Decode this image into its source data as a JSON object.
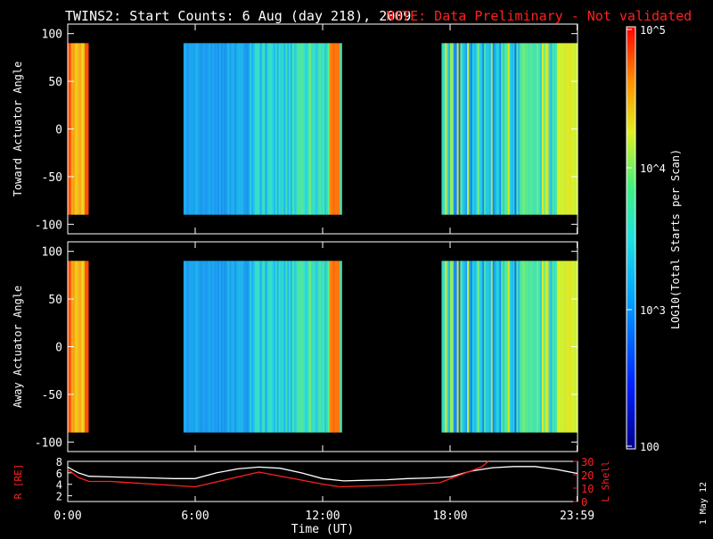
{
  "header": {
    "title": "TWINS2: Start Counts:  6 Aug (day 218), 2009",
    "note": "NOTE: Data Preliminary - Not validated",
    "note_color": "#ff2020"
  },
  "side_label": "1 May 12",
  "colorbar": {
    "label": "LOG10(Total Starts per Scan)",
    "ticks": [
      "10^5",
      "10^4",
      "10^3",
      "100"
    ],
    "range": [
      100,
      100000
    ],
    "scale": "log"
  },
  "chart_data": [
    {
      "type": "heatmap",
      "panel": "top",
      "ylabel": "Toward Actuator Angle",
      "xlabel": "",
      "xlim": [
        0,
        24
      ],
      "ylim": [
        -110,
        110
      ],
      "yticks": [
        100,
        50,
        0,
        -50,
        -100
      ],
      "coverage_hours": [
        [
          0.0,
          0.95
        ],
        [
          5.45,
          12.85
        ],
        [
          17.6,
          23.95
        ]
      ],
      "colors": {
        "low": "#1030d0",
        "mid": "#20d8ff",
        "high": "#ffff20",
        "max": "#ff2000"
      }
    },
    {
      "type": "heatmap",
      "panel": "middle",
      "ylabel": "Away Actuator Angle",
      "xlabel": "",
      "xlim": [
        0,
        24
      ],
      "ylim": [
        -110,
        110
      ],
      "yticks": [
        100,
        50,
        0,
        -50,
        -100
      ],
      "coverage_hours": [
        [
          0.0,
          0.95
        ],
        [
          5.45,
          12.85
        ],
        [
          17.6,
          23.95
        ]
      ],
      "colors": {
        "low": "#1030d0",
        "mid": "#20d8ff",
        "high": "#ffff20",
        "max": "#ff2000"
      }
    },
    {
      "type": "line",
      "panel": "orbit",
      "ylabel": "R [RE]",
      "y2label": "L Shell",
      "xlabel": "Time (UT)",
      "xticks": [
        "0:00",
        "6:00",
        "12:00",
        "18:00",
        "23:59"
      ],
      "xtick_hours": [
        0,
        6,
        12,
        18,
        23.98
      ],
      "xlim": [
        0,
        24
      ],
      "ylim": [
        1,
        8
      ],
      "yticks": [
        2,
        4,
        6,
        8
      ],
      "y2lim": [
        0,
        30
      ],
      "y2ticks": [
        0,
        10,
        20,
        30
      ],
      "series": [
        {
          "color": "#ffffff",
          "x": [
            0,
            0.5,
            1,
            2,
            3,
            4,
            5,
            6,
            7,
            8,
            9,
            10,
            11,
            12,
            13,
            14,
            15,
            16,
            17,
            18,
            19,
            20,
            21,
            22,
            23,
            23.98
          ],
          "y": [
            7.0,
            6.0,
            5.4,
            5.3,
            5.2,
            5.1,
            5.0,
            5.0,
            6.0,
            6.7,
            7.0,
            6.8,
            6.0,
            5.0,
            4.6,
            4.7,
            4.8,
            5.0,
            5.1,
            5.3,
            6.3,
            6.9,
            7.1,
            7.1,
            6.6,
            5.9
          ]
        },
        {
          "color": "#ff2020",
          "x": [
            0,
            0.5,
            1,
            2,
            4,
            6,
            9,
            12,
            12.8,
            15,
            17.5,
            19.5,
            19.8
          ],
          "y": [
            24,
            18,
            15,
            15,
            13,
            11,
            22,
            13,
            11,
            12,
            14,
            26,
            30
          ]
        }
      ]
    }
  ]
}
